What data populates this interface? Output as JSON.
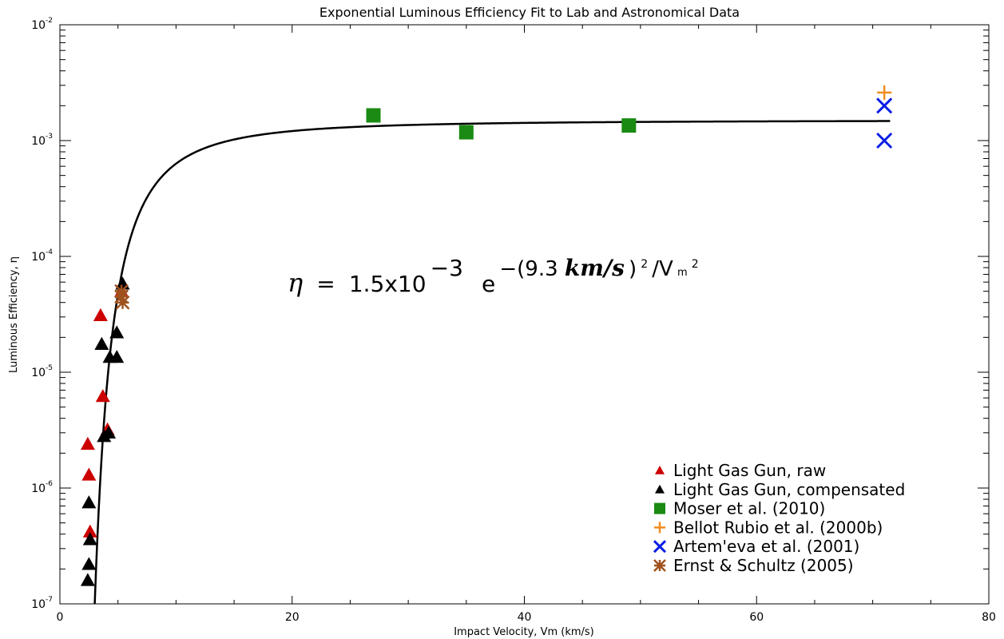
{
  "chart_data": {
    "type": "scatter",
    "title": "Exponential Luminous Efficiency Fit to Lab and Astronomical Data",
    "xlabel": "Impact Velocity, Vm (km/s)",
    "ylabel": "Luminous Efficiency, η",
    "xlim": [
      0,
      80
    ],
    "ylim": [
      1e-07,
      0.01
    ],
    "yscale": "log",
    "x_ticks": [
      "0",
      "20",
      "40",
      "60",
      "80"
    ],
    "y_ticks": [
      {
        "mant": "10",
        "exp": "-7"
      },
      {
        "mant": "10",
        "exp": "-6"
      },
      {
        "mant": "10",
        "exp": "-5"
      },
      {
        "mant": "10",
        "exp": "-4"
      },
      {
        "mant": "10",
        "exp": "-3"
      },
      {
        "mant": "10",
        "exp": "-2"
      }
    ],
    "grid": false,
    "legend_position": "bottom-right",
    "fit": {
      "formula_parts": {
        "eta": "η",
        "eq": "=",
        "coef": "1.5x10",
        "coef_exp": "−3",
        "e": "e",
        "exp_a": "−(9.3 ",
        "exp_unit": "km/s",
        "exp_b": ")",
        "exp_sq1": "2",
        "exp_c": "/V",
        "exp_sub": "m",
        "exp_sq2": "2"
      },
      "A": 0.0015,
      "v0": 9.3,
      "x_range": [
        3.0,
        71.5
      ],
      "color": "#000000"
    },
    "series": [
      {
        "name": "Light Gas Gun, raw",
        "marker": "triangle",
        "color": "#cc0000",
        "points": [
          [
            2.4,
            2.4e-06
          ],
          [
            2.5,
            1.3e-06
          ],
          [
            2.6,
            4.2e-07
          ],
          [
            3.5,
            3.1e-05
          ],
          [
            3.7,
            6.2e-06
          ],
          [
            4.1,
            3.2e-06
          ],
          [
            5.3,
            5e-05
          ]
        ]
      },
      {
        "name": "Light Gas Gun, compensated",
        "marker": "triangle",
        "color": "#000000",
        "points": [
          [
            2.4,
            1.6e-07
          ],
          [
            2.5,
            2.2e-07
          ],
          [
            2.5,
            7.5e-07
          ],
          [
            2.6,
            3.6e-07
          ],
          [
            3.6,
            1.75e-05
          ],
          [
            3.8,
            2.8e-06
          ],
          [
            4.2,
            3e-06
          ],
          [
            4.3,
            1.35e-05
          ],
          [
            4.9,
            1.35e-05
          ],
          [
            4.9,
            2.2e-05
          ],
          [
            5.4,
            5.8e-05
          ]
        ]
      },
      {
        "name": "Moser et al. (2010)",
        "marker": "square",
        "color": "#1a8a12",
        "points": [
          [
            27.0,
            0.00165
          ],
          [
            35.0,
            0.00118
          ],
          [
            49.0,
            0.00135
          ]
        ]
      },
      {
        "name": "Bellot Rubio et al. (2000b)",
        "marker": "plus",
        "color": "#f08c1e",
        "points": [
          [
            71.0,
            0.0026
          ]
        ]
      },
      {
        "name": "Artem'eva et al. (2001)",
        "marker": "x",
        "color": "#0a1ee6",
        "points": [
          [
            71.0,
            0.002
          ],
          [
            71.0,
            0.001
          ]
        ]
      },
      {
        "name": "Ernst & Schultz (2005)",
        "marker": "asterisk",
        "color": "#a0521e",
        "points": [
          [
            5.3,
            5e-05
          ],
          [
            5.3,
            4.5e-05
          ],
          [
            5.4,
            4e-05
          ]
        ]
      }
    ]
  }
}
